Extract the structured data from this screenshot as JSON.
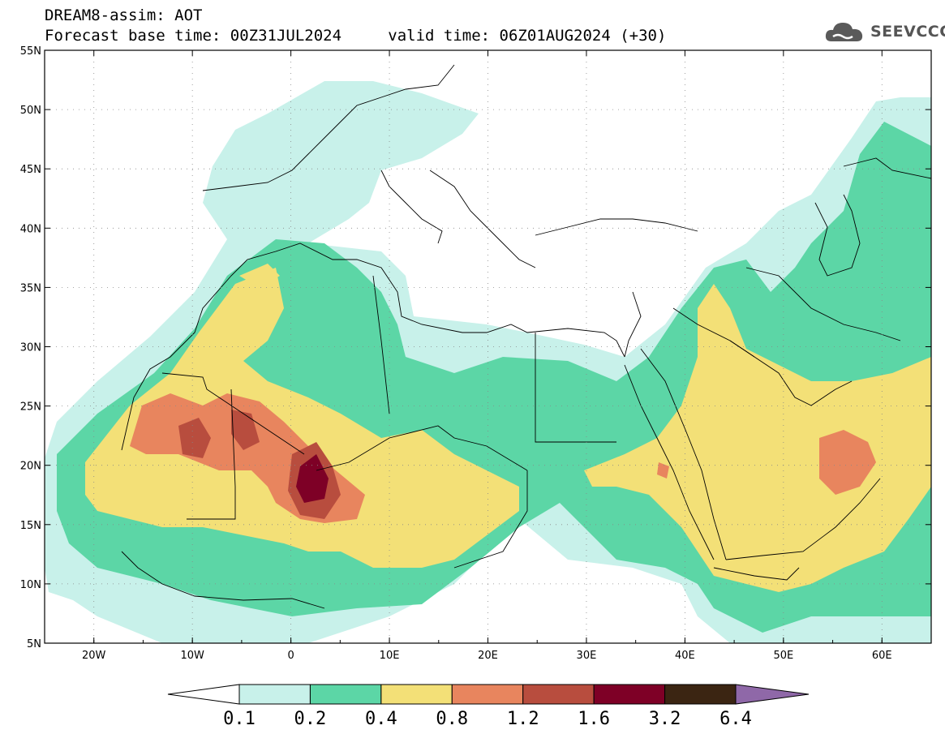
{
  "header": {
    "model": "DREAM8-assim: AOT",
    "base_time_label": "Forecast base time: 00Z31JUL2024",
    "valid_time_label": "valid time: 06Z01AUG2024 (+30)"
  },
  "logo": {
    "text": "SEEVCCC",
    "icon": "cloud-logo-icon"
  },
  "map": {
    "extent": {
      "lon_min": -25,
      "lon_max": 65,
      "lat_min": 5,
      "lat_max": 55
    },
    "lon_ticks": [
      {
        "lon": -20,
        "label": "20W"
      },
      {
        "lon": -10,
        "label": "10W"
      },
      {
        "lon": 0,
        "label": "0"
      },
      {
        "lon": 10,
        "label": "10E"
      },
      {
        "lon": 20,
        "label": "20E"
      },
      {
        "lon": 30,
        "label": "30E"
      },
      {
        "lon": 40,
        "label": "40E"
      },
      {
        "lon": 50,
        "label": "50E"
      },
      {
        "lon": 60,
        "label": "60E"
      }
    ],
    "lat_ticks": [
      {
        "lat": 55,
        "label": "55N"
      },
      {
        "lat": 50,
        "label": "50N"
      },
      {
        "lat": 45,
        "label": "45N"
      },
      {
        "lat": 40,
        "label": "40N"
      },
      {
        "lat": 35,
        "label": "35N"
      },
      {
        "lat": 30,
        "label": "30N"
      },
      {
        "lat": 25,
        "label": "25N"
      },
      {
        "lat": 20,
        "label": "20N"
      },
      {
        "lat": 15,
        "label": "15N"
      },
      {
        "lat": 10,
        "label": "10N"
      },
      {
        "lat": 5,
        "label": "5N"
      }
    ]
  },
  "colorbar": {
    "labels": [
      "0.1",
      "0.2",
      "0.4",
      "0.8",
      "1.2",
      "1.6",
      "3.2",
      "6.4"
    ],
    "colors": [
      "#c8f1ea",
      "#5cd6a6",
      "#f3e077",
      "#e8855e",
      "#b84d3e",
      "#7e0026",
      "#3b2512"
    ],
    "under_color": "#ffffff",
    "over_color": "#8f68a8"
  },
  "palette": {
    "c01": "#c8f1ea",
    "c02": "#5cd6a6",
    "c04": "#f3e077",
    "c08": "#e8855e",
    "c12": "#b84d3e",
    "c16": "#7e0026",
    "border": "#000000",
    "grid": "#888888"
  }
}
